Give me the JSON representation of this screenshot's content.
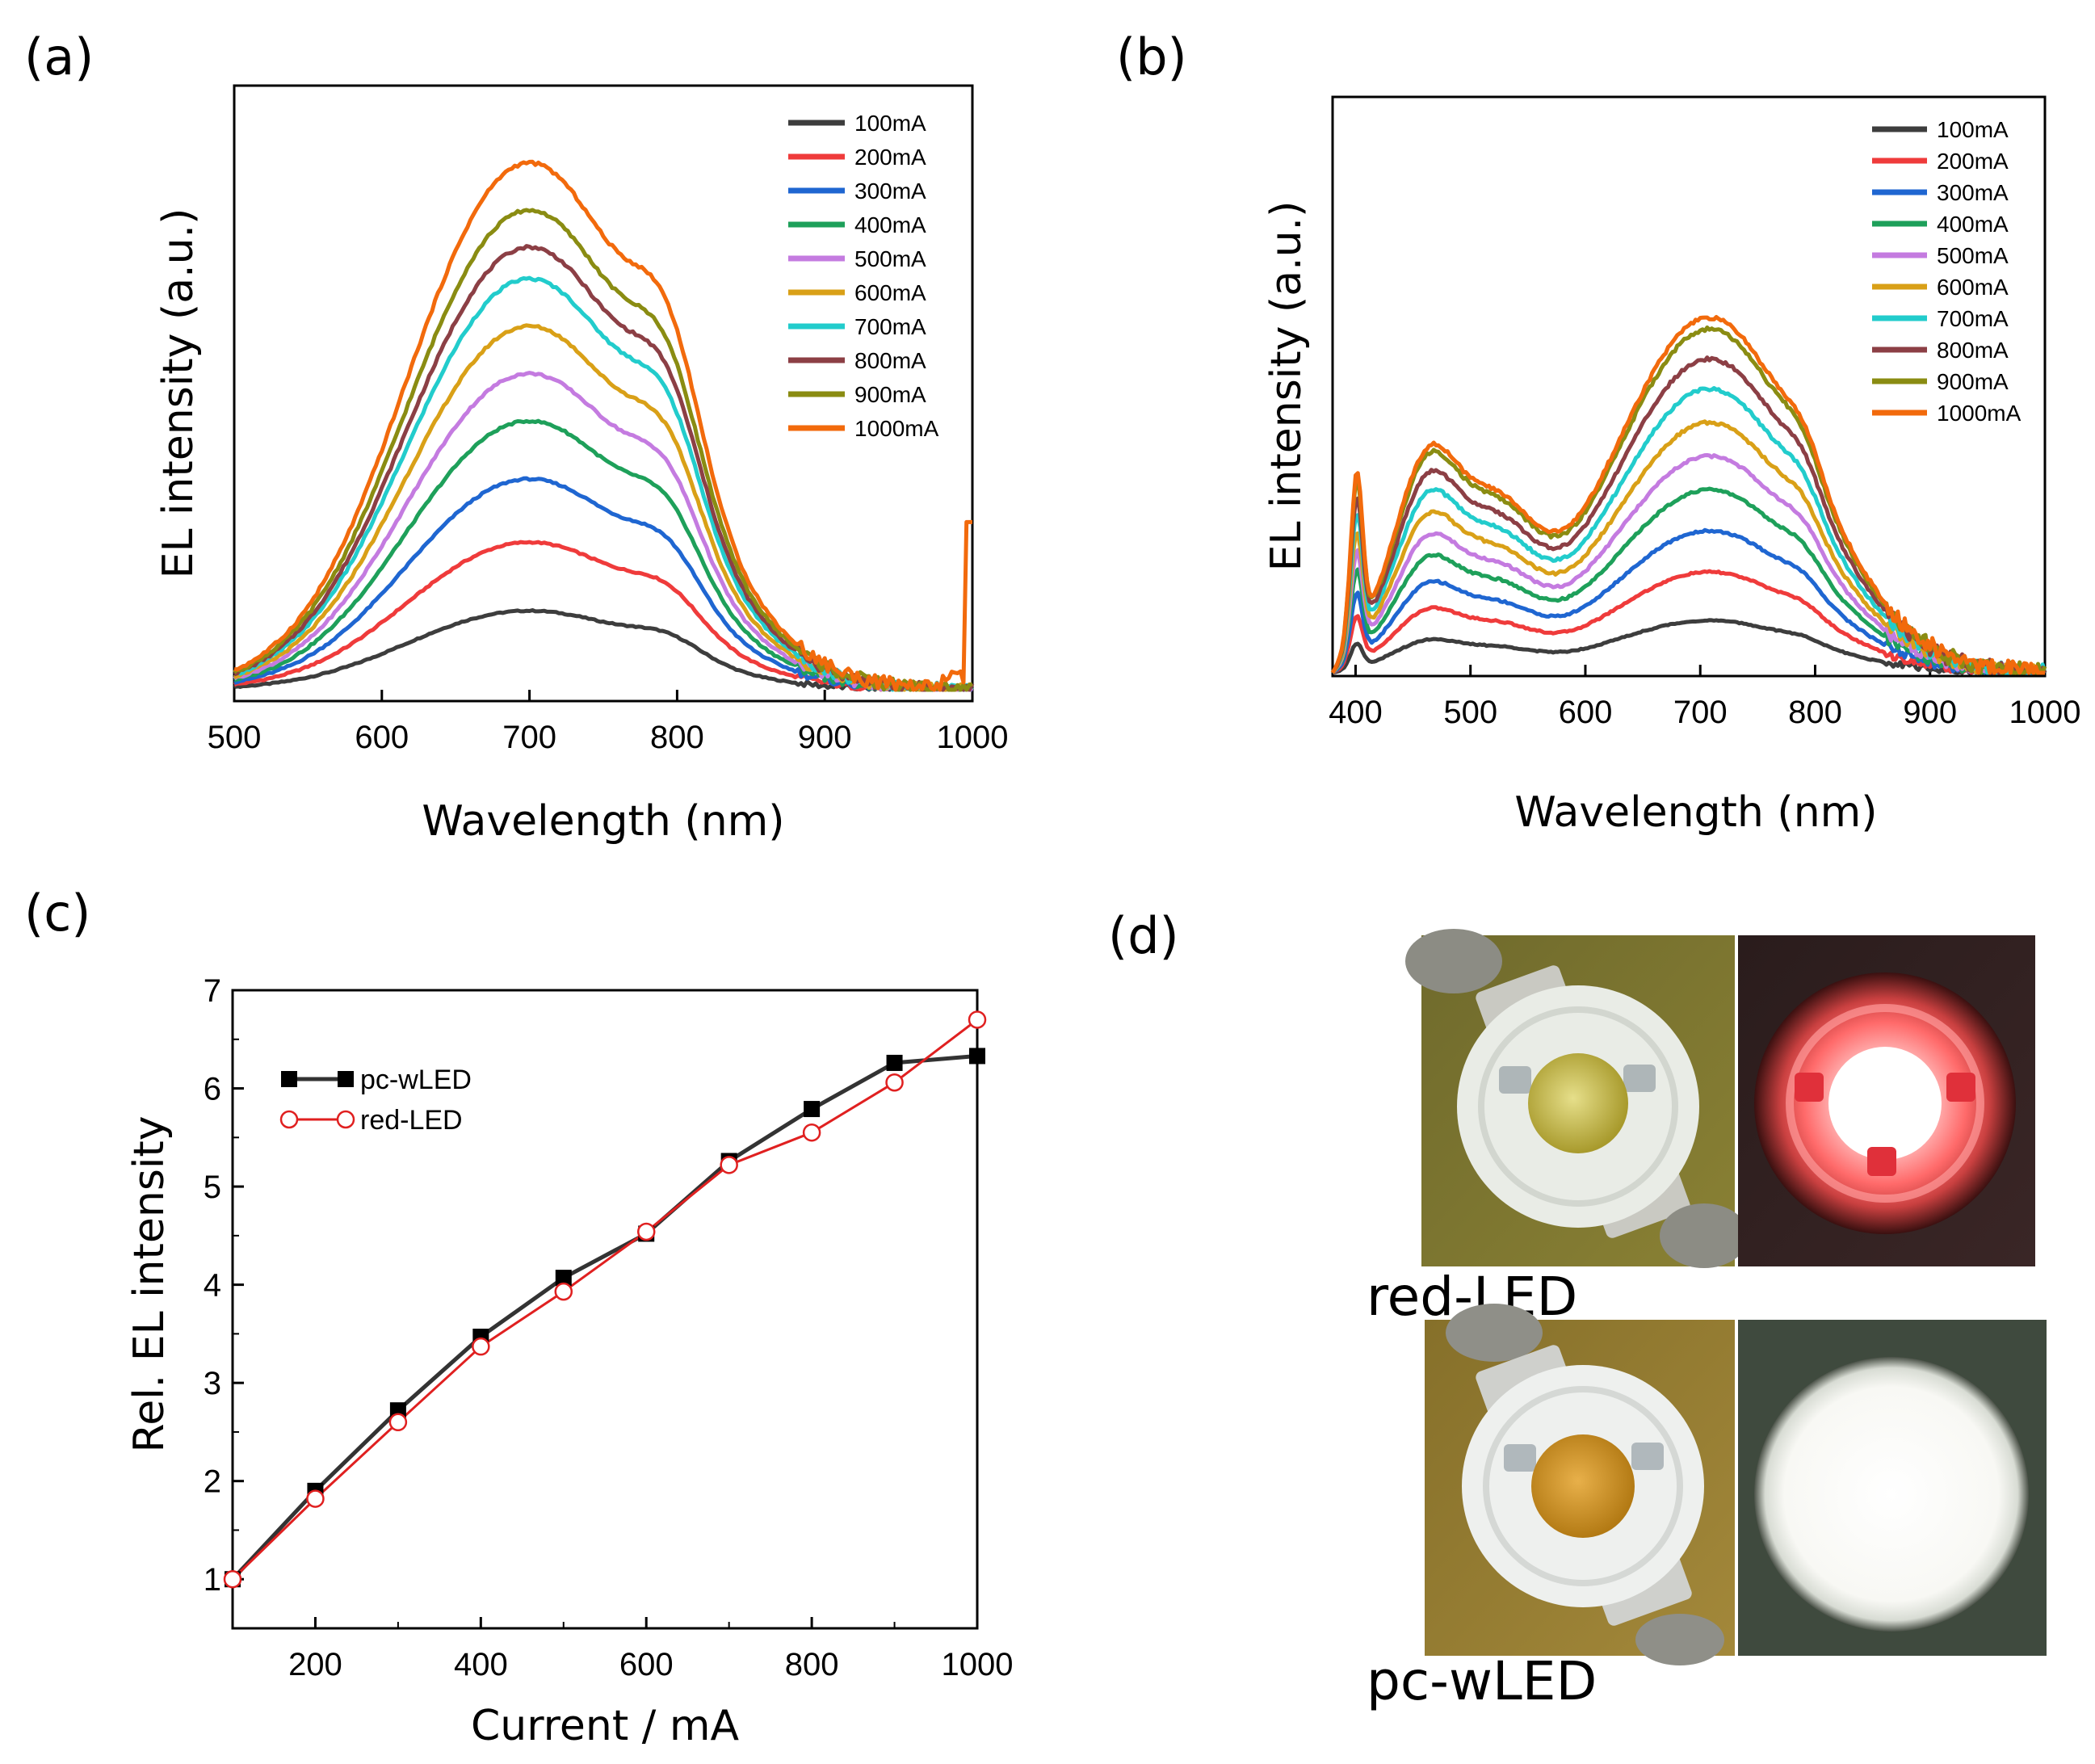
{
  "chart_data": [
    {
      "panel": "(a)",
      "type": "line",
      "title": "",
      "xlabel": "Wavelength (nm)",
      "ylabel": "EL intensity (a.u.)",
      "xlim": [
        500,
        1000
      ],
      "ylim": [
        0,
        1.0
      ],
      "x_ticks": [
        "500",
        "600",
        "700",
        "800",
        "900",
        "1000"
      ],
      "x_tick_values": [
        500,
        600,
        700,
        800,
        900,
        1000
      ],
      "legend_position": "top-right",
      "series": [
        {
          "name": "100mA",
          "color": "#3d3d3d",
          "peak": 0.15,
          "shoulder": 0.06
        },
        {
          "name": "200mA",
          "color": "#ef3b3b",
          "peak": 0.28,
          "shoulder": 0.11
        },
        {
          "name": "300mA",
          "color": "#1f66d1",
          "peak": 0.4,
          "shoulder": 0.16
        },
        {
          "name": "400mA",
          "color": "#1ea05a",
          "peak": 0.51,
          "shoulder": 0.2
        },
        {
          "name": "500mA",
          "color": "#c47be0",
          "peak": 0.6,
          "shoulder": 0.24
        },
        {
          "name": "600mA",
          "color": "#d9a017",
          "peak": 0.69,
          "shoulder": 0.28
        },
        {
          "name": "700mA",
          "color": "#22cccc",
          "peak": 0.78,
          "shoulder": 0.32
        },
        {
          "name": "800mA",
          "color": "#8c3f45",
          "peak": 0.84,
          "shoulder": 0.35
        },
        {
          "name": "900mA",
          "color": "#8a8c12",
          "peak": 0.91,
          "shoulder": 0.38
        },
        {
          "name": "1000mA",
          "color": "#f26a0c",
          "peak": 1.0,
          "shoulder": 0.43
        }
      ]
    },
    {
      "panel": "(b)",
      "type": "line",
      "title": "",
      "xlabel": "Wavelength (nm)",
      "ylabel": "EL intensity (a.u.)",
      "xlim": [
        380,
        1000
      ],
      "ylim": [
        0,
        1.0
      ],
      "x_ticks": [
        "400",
        "500",
        "600",
        "700",
        "800",
        "900",
        "1000"
      ],
      "x_tick_values": [
        400,
        500,
        600,
        700,
        800,
        900,
        1000
      ],
      "legend_position": "top-right",
      "series": [
        {
          "name": "100mA",
          "color": "#3d3d3d",
          "scale": 0.14
        },
        {
          "name": "200mA",
          "color": "#ef3b3b",
          "scale": 0.27
        },
        {
          "name": "300mA",
          "color": "#1f66d1",
          "scale": 0.38
        },
        {
          "name": "400mA",
          "color": "#1ea05a",
          "scale": 0.49
        },
        {
          "name": "500mA",
          "color": "#c47be0",
          "scale": 0.58
        },
        {
          "name": "600mA",
          "color": "#d9a017",
          "scale": 0.67
        },
        {
          "name": "700mA",
          "color": "#22cccc",
          "scale": 0.76
        },
        {
          "name": "800mA",
          "color": "#8c3f45",
          "scale": 0.84
        },
        {
          "name": "900mA",
          "color": "#8a8c12",
          "scale": 0.92
        },
        {
          "name": "1000mA",
          "color": "#f26a0c",
          "scale": 0.95
        }
      ]
    },
    {
      "panel": "(c)",
      "type": "line",
      "title": "",
      "xlabel": "Current / mA",
      "ylabel": "Rel. EL intensity",
      "xlim": [
        100,
        1000
      ],
      "ylim": [
        0.5,
        7
      ],
      "x_ticks": [
        "200",
        "400",
        "600",
        "800",
        "1000"
      ],
      "x_tick_values": [
        200,
        400,
        600,
        800,
        1000
      ],
      "y_ticks": [
        "1",
        "2",
        "3",
        "4",
        "5",
        "6",
        "7"
      ],
      "y_tick_values": [
        1,
        2,
        3,
        4,
        5,
        6,
        7
      ],
      "categories": [
        100,
        200,
        300,
        400,
        500,
        600,
        700,
        800,
        900,
        1000
      ],
      "legend_position": "top-left",
      "series": [
        {
          "name": "pc-wLED",
          "color": "#000000",
          "marker": "filled-square",
          "values": [
            1.0,
            1.9,
            2.72,
            3.47,
            4.07,
            4.52,
            5.26,
            5.79,
            6.26,
            6.33
          ]
        },
        {
          "name": "red-LED",
          "color": "#e02020",
          "marker": "open-circle",
          "values": [
            1.0,
            1.82,
            2.6,
            3.37,
            3.93,
            4.54,
            5.22,
            5.55,
            6.06,
            6.7
          ]
        }
      ]
    }
  ],
  "figure": {
    "panels": [
      "(a)",
      "(b)",
      "(c)",
      "(d)"
    ],
    "photos": {
      "captions": [
        "red-LED",
        "pc-wLED"
      ]
    }
  }
}
